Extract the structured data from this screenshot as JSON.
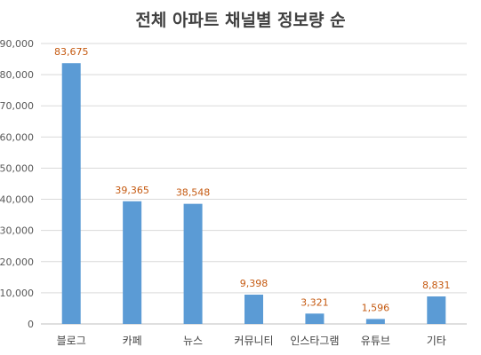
{
  "chart_data": {
    "type": "bar",
    "title": "전체  아파트 채널별 정보량 순",
    "xlabel": "",
    "ylabel": "",
    "categories": [
      "블로그",
      "카페",
      "뉴스",
      "커뮤니티",
      "인스타그램",
      "유튜브",
      "기타"
    ],
    "values": [
      83675,
      39365,
      38548,
      9398,
      3321,
      1596,
      8831
    ],
    "data_labels": [
      "83,675",
      "39,365",
      "38,548",
      "9,398",
      "3,321",
      "1,596",
      "8,831"
    ],
    "yticks": [
      "0",
      "10,000",
      "20,000",
      "30,000",
      "40,000",
      "50,000",
      "60,000",
      "70,000",
      "80,000",
      "90,000"
    ],
    "ylim": [
      0,
      90000
    ],
    "grid": true,
    "legend": "none",
    "colors": {
      "bar": "#5B9BD5",
      "data_label": "#C55A11",
      "grid": "#D9D9D9",
      "axis": "#BFBFBF"
    }
  }
}
